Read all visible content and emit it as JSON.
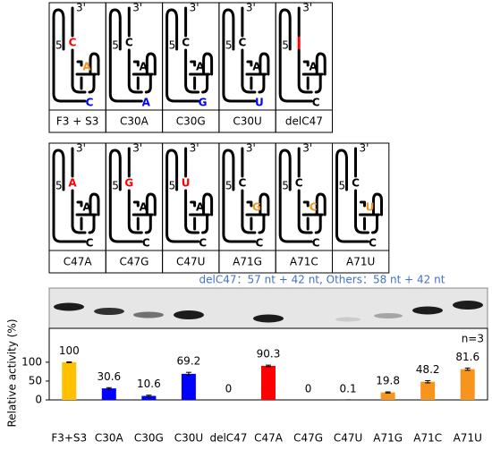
{
  "structures": [
    {
      "label": "F3 + S3",
      "top": "C",
      "top_color": "#ff0000",
      "mid": "A",
      "mid_color": "#f7941d",
      "bottom": "C",
      "bottom_color": "#0000ff"
    },
    {
      "label": "C30A",
      "top": "C",
      "top_color": "#000000",
      "mid": "A",
      "mid_color": "#000000",
      "bottom": "A",
      "bottom_color": "#0000ff"
    },
    {
      "label": "C30G",
      "top": "C",
      "top_color": "#000000",
      "mid": "A",
      "mid_color": "#000000",
      "bottom": "G",
      "bottom_color": "#0000ff"
    },
    {
      "label": "C30U",
      "top": "C",
      "top_color": "#000000",
      "mid": "A",
      "mid_color": "#000000",
      "bottom": "U",
      "bottom_color": "#0000ff"
    },
    {
      "label": "delC47",
      "top_color": "#ff0000",
      "mid": "A",
      "mid_color": "#000000",
      "bottom": "C",
      "bottom_color": "#000000"
    },
    {
      "label": "C47A",
      "top": "A",
      "top_color": "#ff0000",
      "mid": "A",
      "mid_color": "#000000",
      "bottom": "C",
      "bottom_color": "#000000"
    },
    {
      "label": "C47G",
      "top": "G",
      "top_color": "#ff0000",
      "mid": "A",
      "mid_color": "#000000",
      "bottom": "C",
      "bottom_color": "#000000"
    },
    {
      "label": "C47U",
      "top": "U",
      "top_color": "#ff0000",
      "mid": "A",
      "mid_color": "#000000",
      "bottom": "C",
      "bottom_color": "#000000"
    },
    {
      "label": "A71G",
      "top": "C",
      "top_color": "#000000",
      "mid": "G",
      "mid_color": "#f7941d",
      "bottom": "C",
      "bottom_color": "#000000"
    },
    {
      "label": "A71C",
      "top": "C",
      "top_color": "#000000",
      "mid": "C",
      "mid_color": "#f7941d",
      "bottom": "C",
      "bottom_color": "#000000"
    },
    {
      "label": "A71U",
      "top": "C",
      "top_color": "#000000",
      "mid": "U",
      "mid_color": "#f7941d",
      "bottom": "C",
      "bottom_color": "#000000"
    }
  ],
  "end_labels": {
    "three": "3'",
    "five": "5'"
  },
  "gel": {
    "caption": "delC47：57 nt + 42 nt, Others：58 nt + 42 nt"
  },
  "chart_data": {
    "type": "bar",
    "y_label": "Relative activity (%)",
    "note": "n=3",
    "categories": [
      "F3+S3",
      "C30A",
      "C30G",
      "C30U",
      "delC47",
      "C47A",
      "C47G",
      "C47U",
      "A71G",
      "A71C",
      "A71U"
    ],
    "values": [
      100,
      30.6,
      10.6,
      69.2,
      0,
      90.3,
      0,
      0.1,
      19.8,
      48.2,
      81.6
    ],
    "errors": [
      1,
      2,
      2,
      4,
      0,
      2,
      0,
      0.1,
      1.5,
      3,
      3
    ],
    "colors": [
      "#ffc000",
      "#0000ff",
      "#0000ff",
      "#0000ff",
      "#000000",
      "#ff0000",
      "#ff0000",
      "#ff0000",
      "#f7941d",
      "#f7941d",
      "#f7941d"
    ],
    "ylim": [
      0,
      190
    ],
    "yticks": [
      0,
      50,
      100
    ]
  }
}
